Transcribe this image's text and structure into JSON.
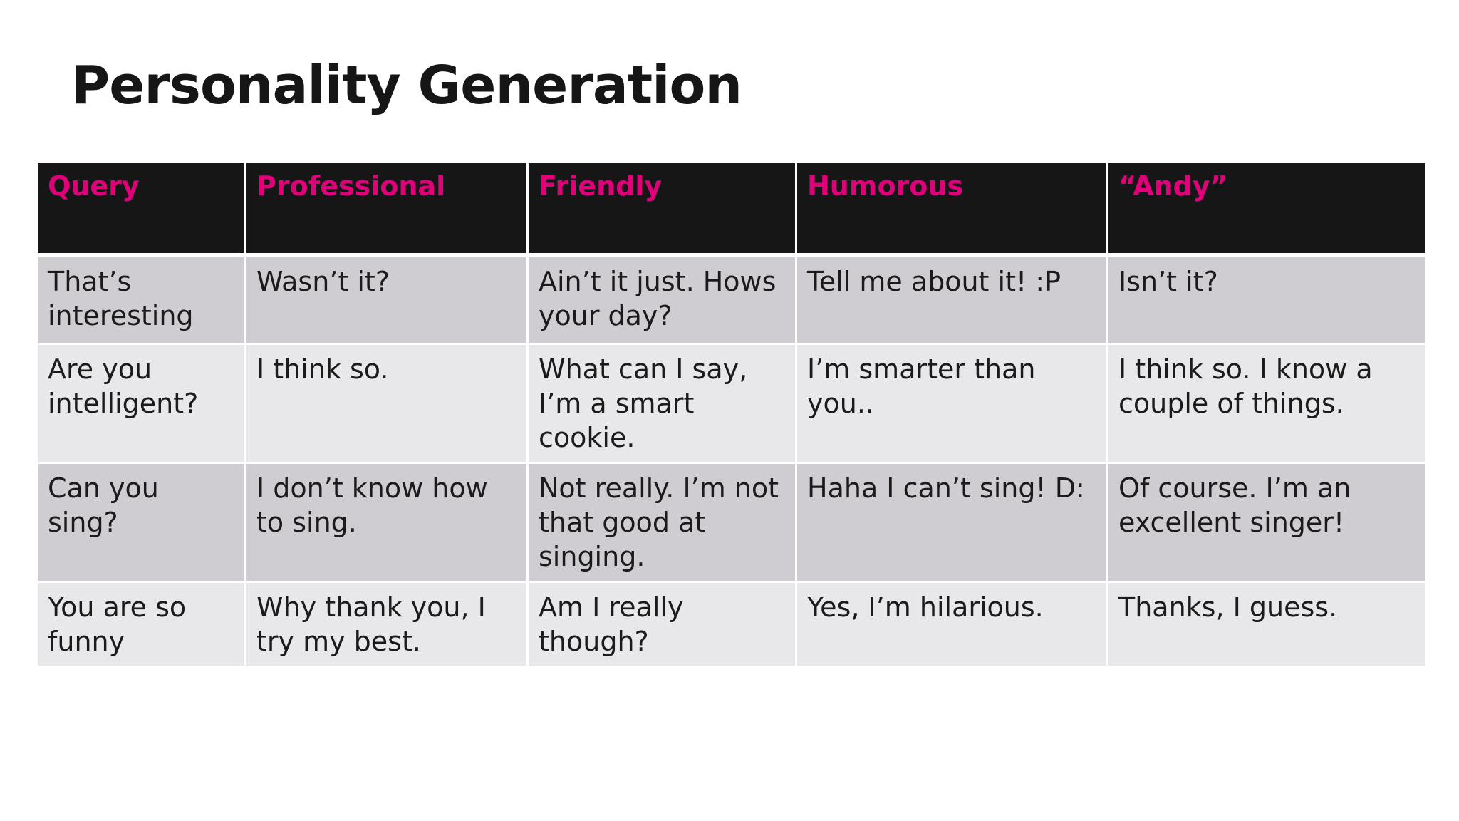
{
  "slide": {
    "title": "Personality Generation"
  },
  "table": {
    "headers": [
      "Query",
      "Professional",
      "Friendly",
      "Humorous",
      "“Andy”"
    ],
    "rows": [
      [
        "That’s interesting",
        "Wasn’t it?",
        "Ain’t it just. Hows your day?",
        "Tell me about it! :P",
        "Isn’t it?"
      ],
      [
        "Are you intelligent?",
        "I think so.",
        "What can I say, I’m a smart cookie.",
        "I’m smarter than you..",
        "I think so. I know a couple of things."
      ],
      [
        "Can you sing?",
        "I don’t know how to sing.",
        "Not really. I’m not that good at singing.",
        "Haha I can’t sing! D:",
        "Of course. I’m an excellent singer!"
      ],
      [
        "You are so funny",
        "Why thank you, I try my best.",
        "Am I really though?",
        "Yes, I’m hilarious.",
        "Thanks, I guess."
      ]
    ]
  },
  "colors": {
    "header_background": "#161616",
    "header_text": "#e0007a",
    "row_odd": "#cfcdd1",
    "row_even": "#e8e7ea"
  }
}
